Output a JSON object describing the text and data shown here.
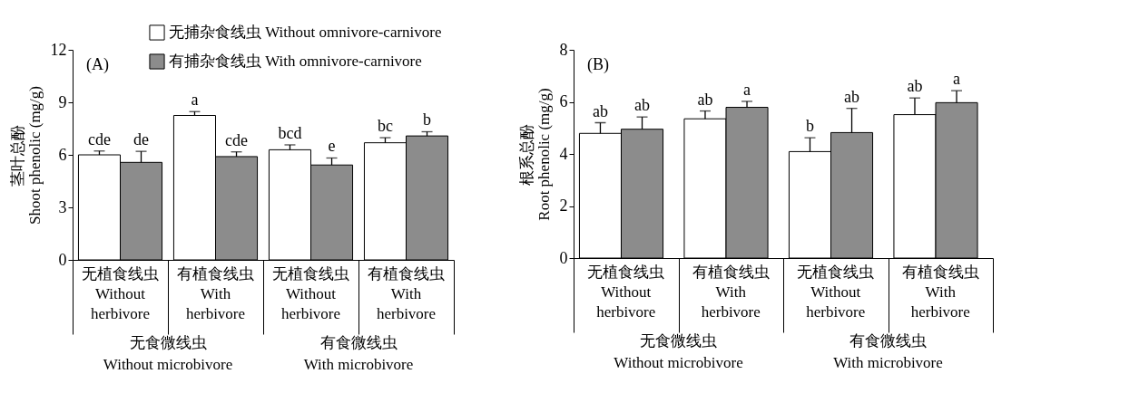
{
  "chart_data": [
    {
      "type": "bar",
      "title": "(A)",
      "ylabel": "茎叶总酚\nShoot phenolic (mg/g)",
      "categories": [
        "无植食线虫\nWithout\nherbivore",
        "有植食线虫\nWith\nherbivore",
        "无植食线虫\nWithout\nherbivore",
        "有植食线虫\nWith\nherbivore"
      ],
      "series": [
        {
          "name": "无捕杂食线虫 Without omnivore-carnivore",
          "color": "#ffffff",
          "values": [
            6.0,
            8.25,
            6.29,
            6.69
          ],
          "errors": [
            [
              6.0,
              6.22
            ],
            [
              8.25,
              8.47
            ],
            [
              6.29,
              6.57
            ],
            [
              6.69,
              6.98
            ]
          ],
          "value_labels": [
            "cde",
            "a",
            "bcd",
            "bc"
          ]
        },
        {
          "name": "有捕杂食线虫 With omnivore-carnivore",
          "color": "#8c8c8c",
          "values": [
            5.57,
            5.9,
            5.42,
            7.08
          ],
          "errors": [
            [
              5.57,
              6.2
            ],
            [
              5.9,
              6.17
            ],
            [
              5.42,
              5.82
            ],
            [
              7.08,
              7.32
            ]
          ],
          "value_labels": [
            "de",
            "cde",
            "e",
            "b"
          ]
        }
      ],
      "ylim": [
        0,
        12
      ],
      "yticks": [
        0,
        3,
        6,
        9,
        12
      ],
      "legend": "top",
      "annotations": [
        "无食微线虫\nWithout microbivore",
        "有食微线虫\nWith microbivore"
      ]
    },
    {
      "type": "bar",
      "title": "(B)",
      "ylabel": "根系总酚\nRoot phenolic (mg/g)",
      "categories": [
        "无植食线虫\nWithout\nherbivore",
        "有植食线虫\nWith\nherbivore",
        "无植食线虫\nWithout\nherbivore",
        "有植食线虫\nWith\nherbivore"
      ],
      "series": [
        {
          "color": "#ffffff",
          "values": [
            4.79,
            5.35,
            4.09,
            5.51
          ],
          "errors": [
            [
              4.79,
              5.2
            ],
            [
              5.35,
              5.65
            ],
            [
              4.09,
              4.62
            ],
            [
              5.51,
              6.15
            ]
          ],
          "value_labels": [
            "ab",
            "ab",
            "b",
            "ab"
          ]
        },
        {
          "color": "#8c8c8c",
          "values": [
            4.95,
            5.79,
            4.82,
            5.97
          ],
          "errors": [
            [
              4.95,
              5.42
            ],
            [
              5.79,
              6.02
            ],
            [
              4.82,
              5.75
            ],
            [
              5.97,
              6.43
            ]
          ],
          "value_labels": [
            "ab",
            "a",
            "ab",
            "a"
          ]
        }
      ],
      "ylim": [
        0,
        8
      ],
      "yticks": [
        0,
        2,
        4,
        6,
        8
      ],
      "legend": false,
      "annotations": [
        "无食微线虫\nWithout microbivore",
        "有食微线虫\nWith microbivore"
      ]
    }
  ]
}
